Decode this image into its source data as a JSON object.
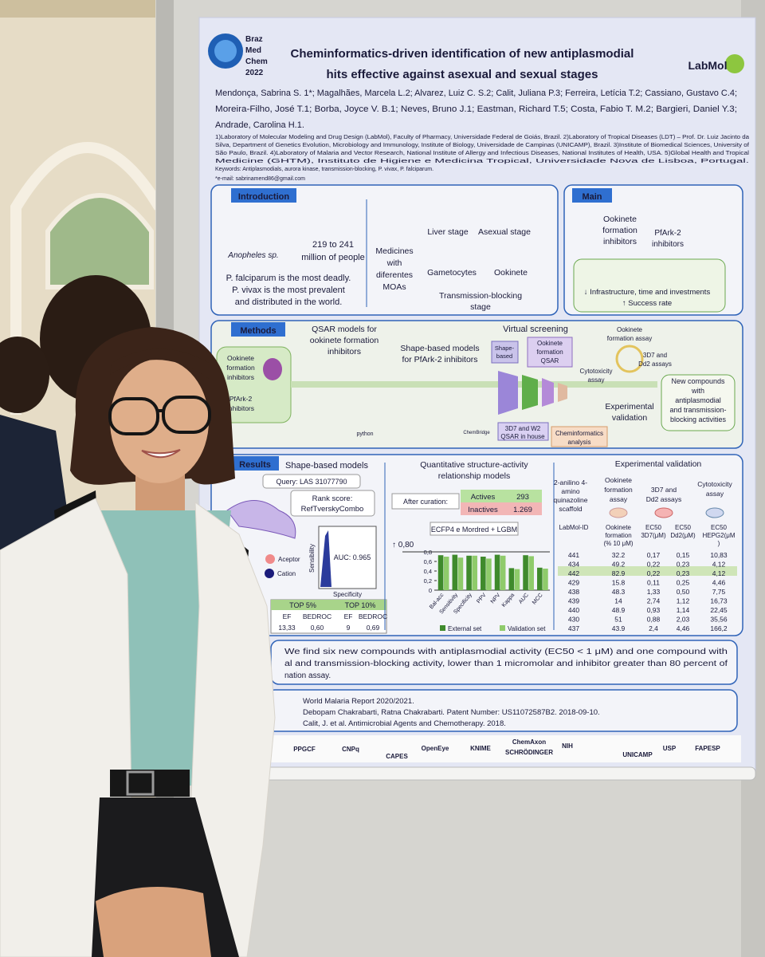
{
  "poster": {
    "event_logo": [
      "Braz",
      "Med",
      "Chem",
      "2022"
    ],
    "title": [
      "Cheminformatics-driven identification of new antiplasmodial",
      "hits effective against asexual and sexual stages"
    ],
    "lab_logo": "LabMol",
    "authors": [
      "Mendonça, Sabrina S. 1*; Magalhães, Marcela L.2; Alvarez, Luiz C. S.2; Calit, Juliana P.3; Ferreira, Letícia T.2; Cassiano, Gustavo C.4;",
      "Moreira-Filho, José T.1; Borba, Joyce V. B.1; Neves, Bruno J.1; Eastman, Richard T.5; Costa, Fabio T. M.2; Bargieri, Daniel Y.3;",
      "Andrade, Carolina H.1."
    ],
    "affiliations": [
      "1)Laboratory of Molecular Modeling and Drug Design (LabMol), Faculty of Pharmacy, Universidade Federal de Goiás, Brazil. 2)Laboratory of Tropical Diseases (LDT) – Prof. Dr. Luiz Jacinto da",
      "Silva, Department of Genetics Evolution, Microbiology and Immunology, Institute of Biology, Universidade de Campinas (UNICAMP), Brazil. 3)Institute of Biomedical Sciences, University of",
      "São Paulo, Brazil. 4)Laboratory of Malaria and Vector Research, National Institute of Allergy and Infectious Diseases, National Institutes of Health, USA. 5)Global Health and Tropical",
      "Medicine (GHTM), Instituto de Higiene e Medicina Tropical, Universidade Nova de Lisboa, Portugal."
    ],
    "keywords": "Keywords: Antiplasmodials, aurora kinase, transmission-blocking, P. vivax, P. falciparum.",
    "email": "*e-mail: sabrinamend86@gmail.com",
    "introduction": {
      "heading": "Introduction",
      "vector": "Anopheles sp.",
      "burden": [
        "219 to 241",
        "million of people"
      ],
      "notes": [
        "P. falciparum is the most deadly.",
        "P. vivax is the most prevalent",
        "and distributed in the world."
      ],
      "medicines": [
        "Medicines",
        "with",
        "diferentes",
        "MOAs"
      ],
      "stages": [
        "Liver stage",
        "Asexual stage",
        "Gametocytes",
        "Ookinete"
      ],
      "transmission": [
        "Transmission-blocking",
        "stage"
      ]
    },
    "main": {
      "heading": "Main",
      "ookinete": [
        "Ookinete",
        "formation",
        "inhibitors"
      ],
      "target": [
        "PfArk-2",
        "inhibitors"
      ],
      "costs": "↓ Infrastructure, time and investments",
      "success": "↑ Success rate"
    },
    "methods": {
      "heading": "Methods",
      "ookinete": [
        "Ookinete",
        "formation",
        "inhibitors"
      ],
      "target": [
        "PfArk-2",
        "inhibitors"
      ],
      "qsar": [
        "QSAR models for",
        "ookinete formation",
        "inhibitors"
      ],
      "shape": [
        "Shape-based models",
        "for PfArk-2 inhibitors"
      ],
      "screening": "Virtual screening",
      "shape_filter": [
        "Shape-",
        "based"
      ],
      "qsar_filter": [
        "Ookinete",
        "formation",
        "QSAR"
      ],
      "in_house": [
        "3D7 and W2",
        "QSAR in house"
      ],
      "analysis": [
        "Cheminformatics",
        "analysis"
      ],
      "assay_ookinete": [
        "Ookinete",
        "formation assay"
      ],
      "assay_cyto": [
        "Cytotoxicity",
        "assay"
      ],
      "assay_strains": [
        "3D7 and",
        "Dd2 assays"
      ],
      "validation": [
        "Experimental",
        "validation"
      ],
      "outcome": [
        "New compounds",
        "with",
        "antiplasmodial",
        "and transmission-",
        "blocking activities"
      ],
      "tools": [
        "python",
        "ChemBridge"
      ]
    },
    "results": {
      "heading": "Results",
      "shape": {
        "title": "Shape-based models",
        "query": "Query: LAS 31077790",
        "rank": [
          "Rank score:",
          "RefTverskyCombo"
        ],
        "auc": "AUC: 0.965",
        "y_label": "Sensibility",
        "x_label": "Specificity",
        "features": [
          "Aceptor",
          "Cation"
        ],
        "top": [
          "TOP 5%",
          "TOP 10%"
        ],
        "metrics": [
          "EF",
          "BEDROC",
          "EF",
          "BEDROC"
        ],
        "scores": [
          "13,33",
          "0,60",
          "9",
          "0,69"
        ]
      },
      "qsar": {
        "title": [
          "Quantitative structure-activity",
          "relationship models"
        ],
        "curation": "After curation:",
        "actives": [
          "Actives",
          "293"
        ],
        "inactives": [
          "Inactives",
          "1.269"
        ],
        "model": "ECFP4 e Mordred + LGBM",
        "threshold": "↑ 0,80"
      },
      "validation": {
        "title": "Experimental validation",
        "scaffold": [
          "2-anilino 4-",
          "amino",
          "quinazoline",
          "scaffold"
        ],
        "assays": [
          [
            "Ookinete",
            "formation",
            "assay"
          ],
          [
            "3D7 and",
            "Dd2 assays"
          ],
          [
            "Cytotoxicity",
            "assay"
          ]
        ],
        "columns": [
          [
            "LabMol-ID"
          ],
          [
            "Ookinete",
            "formation",
            "(% 10 μM)"
          ],
          [
            "EC50",
            "3D7(μM)"
          ],
          [
            "EC50",
            "Dd2(μM)"
          ],
          [
            "EC50",
            "HEPG2(μM",
            ")"
          ]
        ],
        "rows": [
          [
            "441",
            "32.2",
            "0,17",
            "0,15",
            "10,83"
          ],
          [
            "434",
            "49.2",
            "0,22",
            "0,23",
            "4,12"
          ],
          [
            "442",
            "82.9",
            "0,22",
            "0,23",
            "4,12"
          ],
          [
            "429",
            "15.8",
            "0,11",
            "0,25",
            "4,46"
          ],
          [
            "438",
            "48.3",
            "1,33",
            "0,50",
            "7,75"
          ],
          [
            "439",
            "14",
            "2,74",
            "1,12",
            "16,73"
          ],
          [
            "440",
            "48.9",
            "0,93",
            "1,14",
            "22,45"
          ],
          [
            "430",
            "51",
            "0,88",
            "2,03",
            "35,56"
          ],
          [
            "437",
            "43.9",
            "2,4",
            "4,46",
            "166,2"
          ]
        ]
      }
    },
    "conclusion": [
      "We find six new compounds with antiplasmodial activity (EC50 < 1 μM) and one compound with",
      "al and transmission-blocking activity, lower than 1 micromolar and inhibitor greater than 80 percent of",
      "nation assay."
    ],
    "references": [
      "World Malaria Report 2020/2021.",
      "Debopam Chakrabarti, Ratna Chakrabarti. Patent Number: US11072587B2. 2018-09-10.",
      "Calit, J. et al. Antimicrobial Agents and Chemotherapy. 2018."
    ],
    "sponsors": [
      "PPGCF",
      "CNPq",
      "CAPES",
      "OpenEye",
      "KNIME",
      "ChemAxon",
      "SCHRÖDINGER",
      "NIH",
      "UNICAMP",
      "USP",
      "FAPESP"
    ]
  },
  "chart_data": {
    "type": "bar",
    "categories": [
      "Bal-acc",
      "Sensitivity",
      "Specificity",
      "PPV",
      "NPV",
      "Kappa",
      "AUC",
      "MCC"
    ],
    "series": [
      {
        "name": "External set",
        "color": "#3f8a2c",
        "values": [
          0.73,
          0.74,
          0.72,
          0.7,
          0.74,
          0.46,
          0.73,
          0.47
        ]
      },
      {
        "name": "Validation set",
        "color": "#8fcb6b",
        "values": [
          0.7,
          0.68,
          0.72,
          0.66,
          0.72,
          0.44,
          0.71,
          0.45
        ]
      }
    ],
    "ylim": [
      0,
      0.8
    ],
    "yticks": [
      {
        "value": 0,
        "label": "0"
      },
      {
        "value": 0.2,
        "label": "0,2"
      },
      {
        "value": 0.4,
        "label": "0,4"
      },
      {
        "value": 0.6,
        "label": "0,6"
      },
      {
        "value": 0.8,
        "label": "0,8"
      }
    ]
  }
}
